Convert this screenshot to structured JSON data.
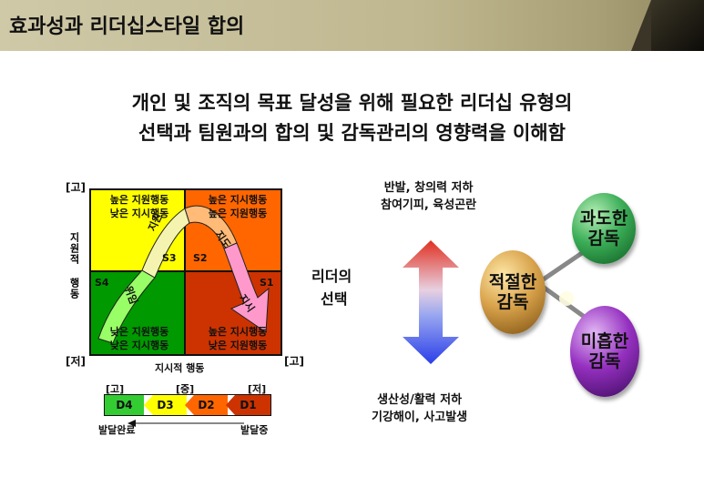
{
  "header": {
    "title": "효과성과 리더십스타일 합의"
  },
  "subtitle": {
    "line1": "개인 및 조직의 목표 달성을 위해 필요한 리더십 유형의",
    "line2": "선택과  팀원과의 합의 및 감독관리의 영향력을 이해함"
  },
  "situational_model": {
    "y_axis": {
      "label": "지원적 행동",
      "high": "[고]",
      "low": "[저]"
    },
    "x_axis": {
      "label": "지시적 행동",
      "high": "[고]"
    },
    "quadrants": {
      "s3": {
        "code": "S3",
        "line1": "높은 지원행동",
        "line2": "낮은 지시행동",
        "color": "#ffff00"
      },
      "s2": {
        "code": "S2",
        "line1": "높은 지시행동",
        "line2": "높은 지원행동",
        "color": "#ff6600"
      },
      "s4": {
        "code": "S4",
        "line1": "낮은 지원행동",
        "line2": "낮은 지시행동",
        "color": "#009900"
      },
      "s1": {
        "code": "S1",
        "line1": "높은 지시행동",
        "line2": "낮은 지원행동",
        "color": "#cc3300"
      }
    },
    "curve_labels": {
      "delegate": "위임",
      "support": "지원",
      "coach": "지도",
      "direct": "지시"
    },
    "development_bar": {
      "high": "[고]",
      "mid": "[중]",
      "low": "[저]",
      "levels": [
        {
          "code": "D4",
          "color": "#33cc33"
        },
        {
          "code": "D3",
          "color": "#ffff00"
        },
        {
          "code": "D2",
          "color": "#ff6600"
        },
        {
          "code": "D1",
          "color": "#cc3300"
        }
      ],
      "left_caption": "발달완료",
      "right_caption": "발달중"
    }
  },
  "leader_choice": {
    "label_line1": "리더의",
    "label_line2": "선택",
    "top_note_line1": "반발, 창의력 저하",
    "top_note_line2": "참여기피, 육성곤란",
    "bottom_note_line1": "생산성/활력 저하",
    "bottom_note_line2": "기강해이, 사고발생",
    "balls": {
      "appropriate": {
        "line1": "적절한",
        "line2": "감독",
        "color": "#cc9a33"
      },
      "excessive": {
        "line1": "과도한",
        "line2": "감독",
        "color": "#33a64d"
      },
      "insufficient": {
        "line1": "미흡한",
        "line2": "감독",
        "color": "#8a22b5"
      }
    }
  }
}
